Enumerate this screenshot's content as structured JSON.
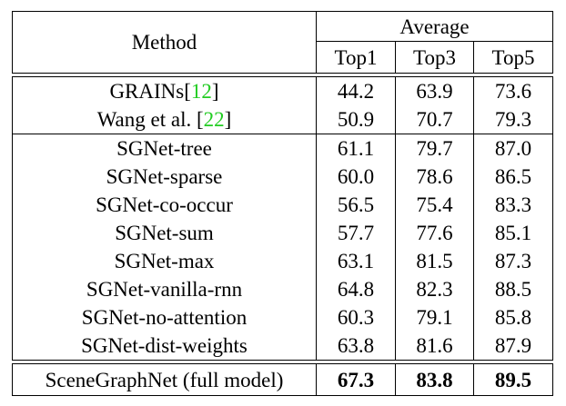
{
  "table": {
    "header": {
      "method": "Method",
      "group": "Average",
      "columns": [
        "Top1",
        "Top3",
        "Top5"
      ]
    },
    "baselines": [
      {
        "prefix": "GRAINs[",
        "cite": "12",
        "suffix": "]",
        "top1": "44.2",
        "top3": "63.9",
        "top5": "73.6"
      },
      {
        "prefix": "Wang et al. [",
        "cite": "22",
        "suffix": "]",
        "top1": "50.9",
        "top3": "70.7",
        "top5": "79.3"
      }
    ],
    "variants": [
      {
        "method": "SGNet-tree",
        "top1": "61.1",
        "top3": "79.7",
        "top5": "87.0"
      },
      {
        "method": "SGNet-sparse",
        "top1": "60.0",
        "top3": "78.6",
        "top5": "86.5"
      },
      {
        "method": "SGNet-co-occur",
        "top1": "56.5",
        "top3": "75.4",
        "top5": "83.3"
      },
      {
        "method": "SGNet-sum",
        "top1": "57.7",
        "top3": "77.6",
        "top5": "85.1"
      },
      {
        "method": "SGNet-max",
        "top1": "63.1",
        "top3": "81.5",
        "top5": "87.3"
      },
      {
        "method": "SGNet-vanilla-rnn",
        "top1": "64.8",
        "top3": "82.3",
        "top5": "88.5"
      },
      {
        "method": "SGNet-no-attention",
        "top1": "60.3",
        "top3": "79.1",
        "top5": "85.8"
      },
      {
        "method": "SGNet-dist-weights",
        "top1": "63.8",
        "top3": "81.6",
        "top5": "87.9"
      }
    ],
    "final": {
      "method": "SceneGraphNet (full model)",
      "top1": "67.3",
      "top3": "83.8",
      "top5": "89.5"
    },
    "cite_color": "#22cc22"
  }
}
